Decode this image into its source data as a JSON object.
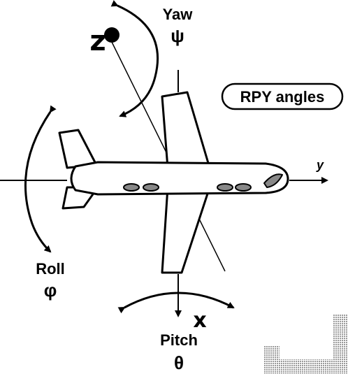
{
  "diagram": {
    "title_badge": "RPY angles",
    "yaw": {
      "label": "Yaw",
      "symbol": "ψ"
    },
    "roll": {
      "label": "Roll",
      "symbol": "φ"
    },
    "pitch": {
      "label": "Pitch",
      "symbol": "θ"
    },
    "axes": {
      "y": "y",
      "x": "x",
      "z": "z"
    }
  },
  "colors": {
    "ink": "#000000",
    "background": "#ffffff",
    "shadow": "#c8c8c8"
  },
  "icons": [
    "airplane-icon",
    "yaw-arrow-icon",
    "roll-arrow-icon",
    "pitch-arrow-icon"
  ]
}
